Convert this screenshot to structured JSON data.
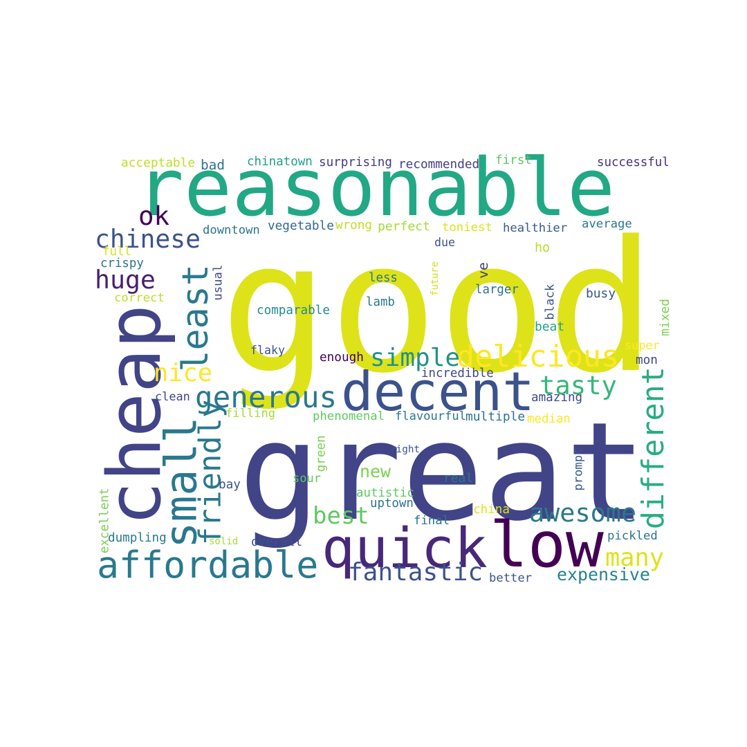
{
  "words": [
    {
      "text": "good",
      "color": "#dde318"
    },
    {
      "text": "great",
      "color": "#414487"
    },
    {
      "text": "reasonable",
      "color": "#22a884"
    },
    {
      "text": "cheap",
      "color": "#414487"
    },
    {
      "text": "decent",
      "color": "#3b528b"
    },
    {
      "text": "low",
      "color": "#440154"
    },
    {
      "text": "quick",
      "color": "#482878"
    },
    {
      "text": "affordable",
      "color": "#2a788e"
    },
    {
      "text": "small",
      "color": "#2a788e"
    },
    {
      "text": "least",
      "color": "#2a788e"
    },
    {
      "text": "generous",
      "color": "#2a788e"
    },
    {
      "text": "delicious",
      "color": "#fde725"
    },
    {
      "text": "friendly",
      "color": "#2a788e"
    },
    {
      "text": "different",
      "color": "#27ad81"
    },
    {
      "text": "fantastic",
      "color": "#3b528b"
    },
    {
      "text": "awesome",
      "color": "#2a788e"
    },
    {
      "text": "simple",
      "color": "#21918c"
    },
    {
      "text": "tasty",
      "color": "#35b779"
    },
    {
      "text": "chinese",
      "color": "#3b528b"
    },
    {
      "text": "huge",
      "color": "#481f70"
    },
    {
      "text": "nice",
      "color": "#fde725"
    },
    {
      "text": "new",
      "color": "#7ad151"
    },
    {
      "text": "best",
      "color": "#5ec962"
    },
    {
      "text": "many",
      "color": "#dde318"
    },
    {
      "text": "expensive",
      "color": "#26828e"
    },
    {
      "text": "ok",
      "color": "#440154"
    },
    {
      "text": "acceptable",
      "color": "#bddf26"
    },
    {
      "text": "bad",
      "color": "#2c728e"
    },
    {
      "text": "chinatown",
      "color": "#1f9e89"
    },
    {
      "text": "surprising",
      "color": "#443a83"
    },
    {
      "text": "recommended",
      "color": "#433e85"
    },
    {
      "text": "first",
      "color": "#5ec962"
    },
    {
      "text": "successful",
      "color": "#46327e"
    },
    {
      "text": "downtown",
      "color": "#2c728e"
    },
    {
      "text": "vegetable",
      "color": "#31688e"
    },
    {
      "text": "wrong",
      "color": "#bddf26"
    },
    {
      "text": "perfect",
      "color": "#a5db36"
    },
    {
      "text": "toniest",
      "color": "#dde318"
    },
    {
      "text": "healthier",
      "color": "#38598c"
    },
    {
      "text": "average",
      "color": "#2a788e"
    },
    {
      "text": "full",
      "color": "#d8e219"
    },
    {
      "text": "crispy",
      "color": "#2c728e"
    },
    {
      "text": "correct",
      "color": "#bddf26"
    },
    {
      "text": "usual",
      "color": "#3e4989"
    },
    {
      "text": "due",
      "color": "#3b528b"
    },
    {
      "text": "ho",
      "color": "#b5de2b"
    },
    {
      "text": "less",
      "color": "#2c728e"
    },
    {
      "text": "lamb",
      "color": "#2a788e"
    },
    {
      "text": "future",
      "color": "#d0e11c"
    },
    {
      "text": "ve",
      "color": "#433e85"
    },
    {
      "text": "larger",
      "color": "#2c728e"
    },
    {
      "text": "busy",
      "color": "#3b528b"
    },
    {
      "text": "black",
      "color": "#3b528b"
    },
    {
      "text": "beat",
      "color": "#20a486"
    },
    {
      "text": "mixed",
      "color": "#7ad151"
    },
    {
      "text": "comparable",
      "color": "#23898e"
    },
    {
      "text": "flaky",
      "color": "#3b528b"
    },
    {
      "text": "super",
      "color": "#fde725"
    },
    {
      "text": "enough",
      "color": "#440154"
    },
    {
      "text": "incredible",
      "color": "#3e4989"
    },
    {
      "text": "mon",
      "color": "#3e4989"
    },
    {
      "text": "clean",
      "color": "#3e4989"
    },
    {
      "text": "amazing",
      "color": "#3e4989"
    },
    {
      "text": "filling",
      "color": "#a5db36"
    },
    {
      "text": "phenomenal",
      "color": "#5ec962"
    },
    {
      "text": "flavourful",
      "color": "#2a788e"
    },
    {
      "text": "multiple",
      "color": "#2c728e"
    },
    {
      "text": "median",
      "color": "#fde725"
    },
    {
      "text": "green",
      "color": "#7ad151"
    },
    {
      "text": "right",
      "color": "#3b528b"
    },
    {
      "text": "prompt",
      "color": "#38598c"
    },
    {
      "text": "sour",
      "color": "#5ec962"
    },
    {
      "text": "real",
      "color": "#2a788e"
    },
    {
      "text": "bay",
      "color": "#3b528b"
    },
    {
      "text": "autistic",
      "color": "#5ec962"
    },
    {
      "text": "excellent",
      "color": "#7ad151"
    },
    {
      "text": "uptown",
      "color": "#2c728e"
    },
    {
      "text": "china",
      "color": "#dde318"
    },
    {
      "text": "final",
      "color": "#2c728e"
    },
    {
      "text": "dumpling",
      "color": "#2a788e"
    },
    {
      "text": "solid",
      "color": "#a5db36"
    },
    {
      "text": "overall",
      "color": "#3b528b"
    },
    {
      "text": "pickled",
      "color": "#2c728e"
    },
    {
      "text": "better",
      "color": "#3b528b"
    }
  ]
}
